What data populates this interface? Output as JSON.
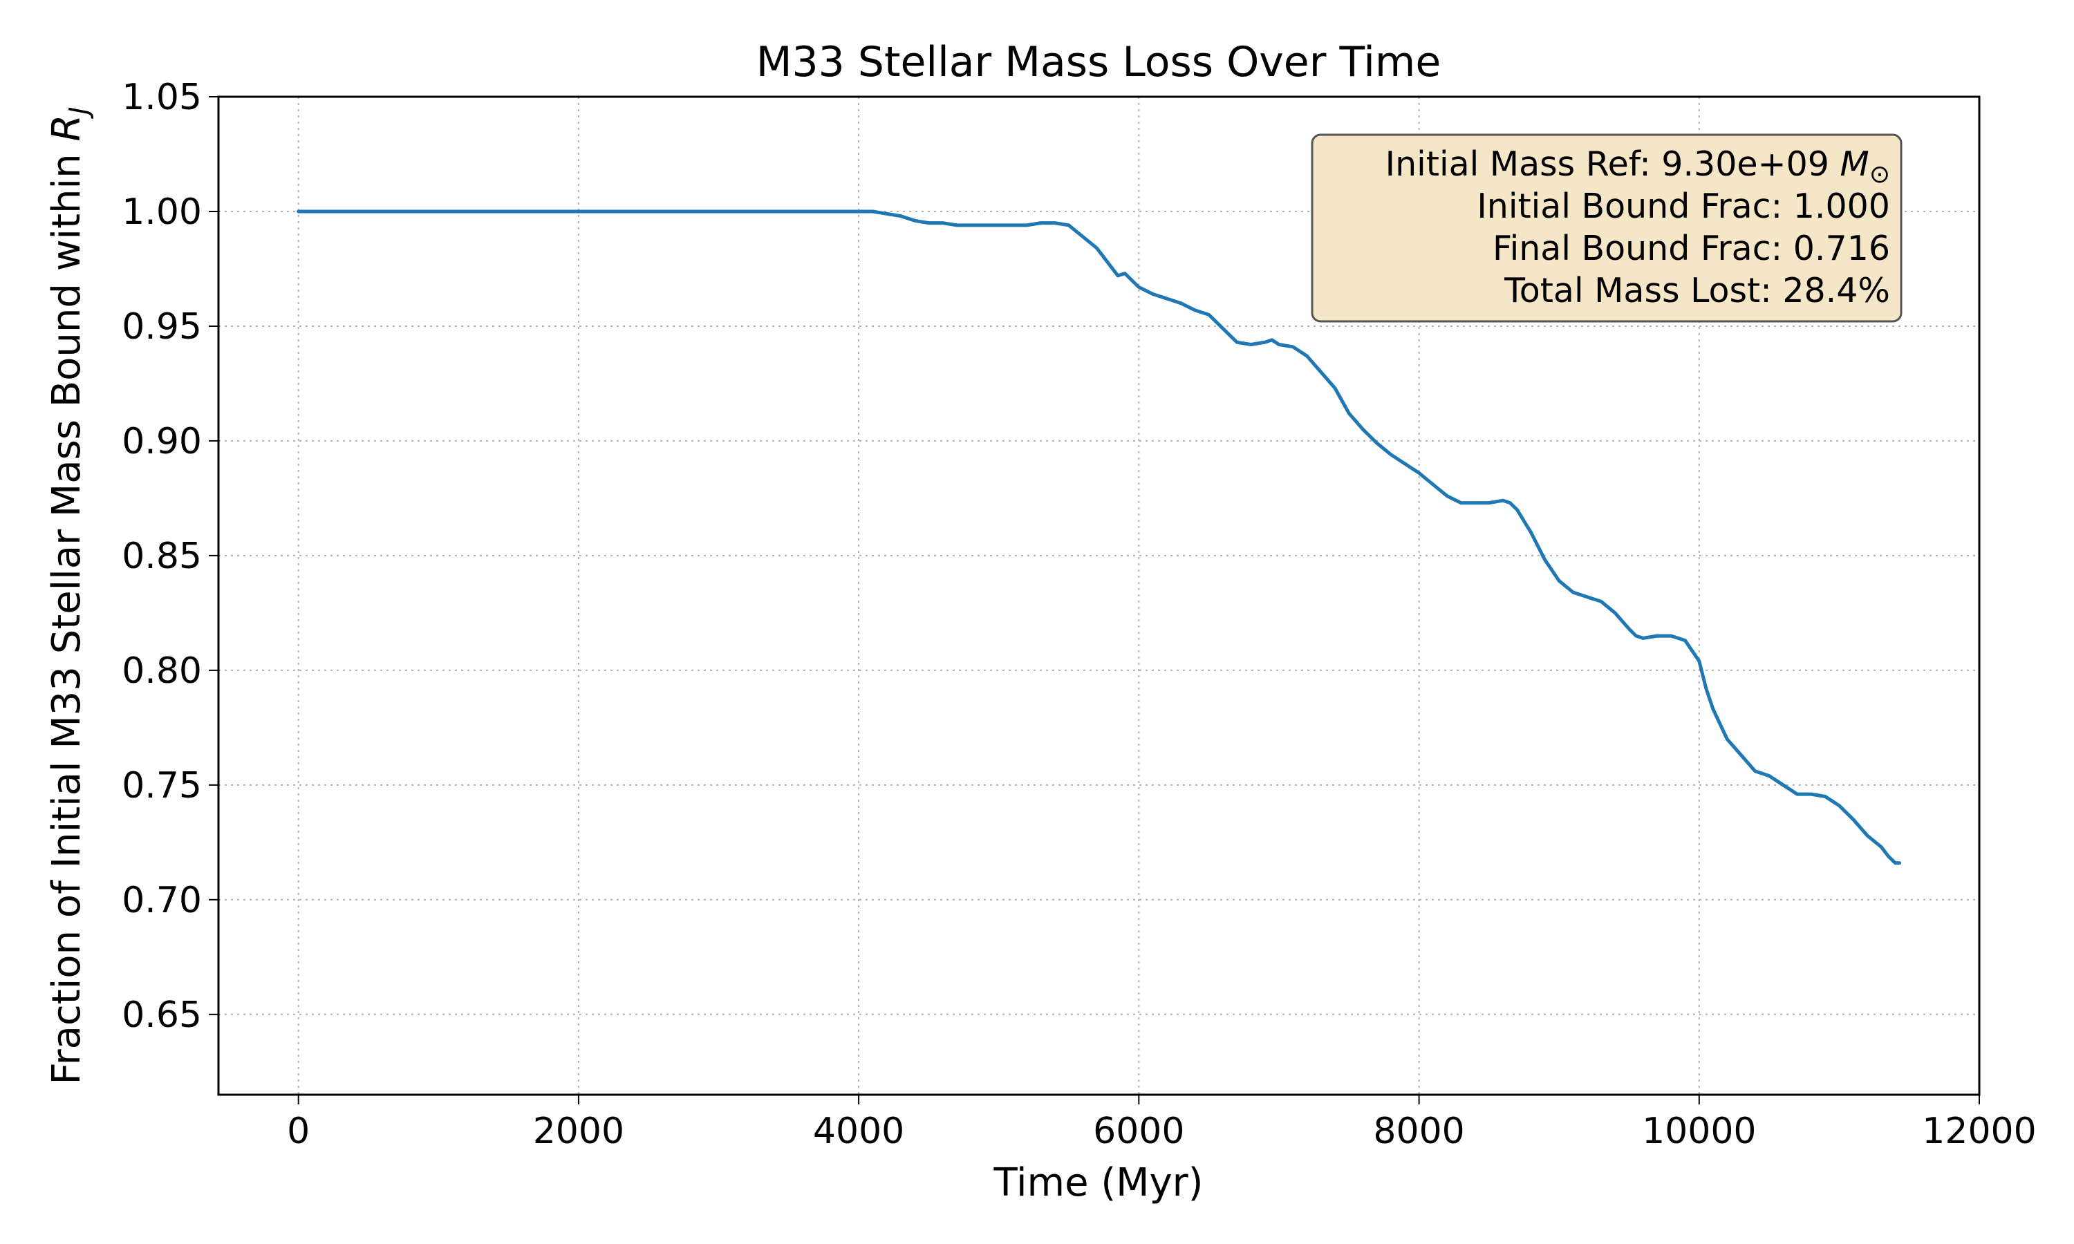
{
  "chart_data": {
    "type": "line",
    "title": "M33 Stellar Mass Loss Over Time",
    "xlabel": "Time (Myr)",
    "ylabel": "Fraction of Initial M33 Stellar Mass Bound within ",
    "ylabel_symbol": "R",
    "ylabel_subscript": "J",
    "xlim": [
      -571,
      12000
    ],
    "ylim": [
      0.615,
      1.05
    ],
    "xticks": [
      0,
      2000,
      4000,
      6000,
      8000,
      10000,
      12000
    ],
    "xtick_labels": [
      "0",
      "2000",
      "4000",
      "6000",
      "8000",
      "10000",
      "12000"
    ],
    "yticks": [
      0.65,
      0.7,
      0.75,
      0.8,
      0.85,
      0.9,
      0.95,
      1.0,
      1.05
    ],
    "ytick_labels": [
      "0.65",
      "0.70",
      "0.75",
      "0.80",
      "0.85",
      "0.90",
      "0.95",
      "1.00",
      "1.05"
    ],
    "grid": true,
    "series": [
      {
        "color": "#1f77b4",
        "x": [
          0,
          500,
          1000,
          1500,
          2000,
          2500,
          3000,
          3500,
          4000,
          4100,
          4200,
          4300,
          4400,
          4500,
          4600,
          4700,
          4800,
          4900,
          5000,
          5100,
          5200,
          5300,
          5400,
          5500,
          5600,
          5700,
          5800,
          5850,
          5900,
          6000,
          6100,
          6200,
          6300,
          6400,
          6500,
          6600,
          6700,
          6800,
          6900,
          6950,
          7000,
          7100,
          7200,
          7300,
          7400,
          7500,
          7600,
          7700,
          7800,
          7900,
          8000,
          8100,
          8200,
          8300,
          8400,
          8500,
          8600,
          8650,
          8700,
          8800,
          8900,
          9000,
          9100,
          9200,
          9300,
          9400,
          9500,
          9550,
          9600,
          9700,
          9800,
          9850,
          9900,
          10000,
          10050,
          10100,
          10200,
          10300,
          10400,
          10500,
          10600,
          10700,
          10800,
          10900,
          11000,
          11100,
          11200,
          11300,
          11350,
          11400,
          11430
        ],
        "y": [
          1.0,
          1.0,
          1.0,
          1.0,
          1.0,
          1.0,
          1.0,
          1.0,
          1.0,
          1.0,
          0.999,
          0.998,
          0.996,
          0.995,
          0.995,
          0.994,
          0.994,
          0.994,
          0.994,
          0.994,
          0.994,
          0.995,
          0.995,
          0.994,
          0.989,
          0.984,
          0.976,
          0.972,
          0.973,
          0.967,
          0.964,
          0.962,
          0.96,
          0.957,
          0.955,
          0.949,
          0.943,
          0.942,
          0.943,
          0.944,
          0.942,
          0.941,
          0.937,
          0.93,
          0.923,
          0.912,
          0.905,
          0.899,
          0.894,
          0.89,
          0.886,
          0.881,
          0.876,
          0.873,
          0.873,
          0.873,
          0.874,
          0.873,
          0.87,
          0.86,
          0.848,
          0.839,
          0.834,
          0.832,
          0.83,
          0.825,
          0.818,
          0.815,
          0.814,
          0.815,
          0.815,
          0.814,
          0.813,
          0.804,
          0.792,
          0.783,
          0.77,
          0.763,
          0.756,
          0.754,
          0.75,
          0.746,
          0.746,
          0.745,
          0.741,
          0.735,
          0.728,
          0.723,
          0.719,
          0.716,
          0.716
        ]
      }
    ],
    "annotation": {
      "placement": "top-right",
      "lines": [
        {
          "text": "Initial Mass Ref: 9.30e+09 ",
          "math": "M",
          "math_sub": "⊙"
        },
        {
          "text": "Initial Bound Frac: 1.000"
        },
        {
          "text": "Final Bound Frac: 0.716"
        },
        {
          "text": "Total Mass Lost: 28.4%"
        }
      ],
      "box_fill": "#f5e6c8",
      "box_stroke": "#555555"
    }
  }
}
